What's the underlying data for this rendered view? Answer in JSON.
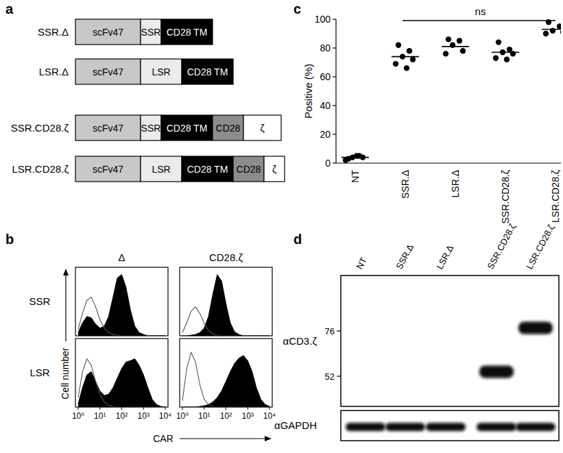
{
  "panel_labels": [
    "a",
    "b",
    "c",
    "d"
  ],
  "diagram": {
    "constructs": [
      {
        "name": "SSR.Δ",
        "domains": [
          {
            "text": "scFv47",
            "color": "#c8c8c8"
          },
          {
            "text": "SSR",
            "color": "#ebebeb"
          },
          {
            "text": "CD28 TM",
            "color": "#000000"
          }
        ]
      },
      {
        "name": "LSR.Δ",
        "domains": [
          {
            "text": "scFv47",
            "color": "#c8c8c8"
          },
          {
            "text": "LSR",
            "color": "#ebebeb"
          },
          {
            "text": "CD28 TM",
            "color": "#000000"
          }
        ]
      },
      {
        "name": "SSR.CD28.ζ",
        "domains": [
          {
            "text": "scFv47",
            "color": "#c8c8c8"
          },
          {
            "text": "SSR",
            "color": "#ebebeb"
          },
          {
            "text": "CD28 TM",
            "color": "#000000"
          },
          {
            "text": "CD28",
            "color": "#8c8c8c"
          },
          {
            "text": "ζ",
            "color": "#ffffff"
          }
        ]
      },
      {
        "name": "LSR.CD28.ζ",
        "domains": [
          {
            "text": "scFv47",
            "color": "#c8c8c8"
          },
          {
            "text": "LSR",
            "color": "#ebebeb"
          },
          {
            "text": "CD28 TM",
            "color": "#000000"
          },
          {
            "text": "CD28",
            "color": "#8c8c8c"
          },
          {
            "text": "ζ",
            "color": "#ffffff"
          }
        ]
      }
    ]
  },
  "histogram_grid": {
    "columns": [
      "Δ",
      "CD28.ζ"
    ],
    "rows": [
      "SSR",
      "LSR"
    ],
    "x_label": "CAR",
    "y_label": "Cell number"
  },
  "chart_data": [
    {
      "type": "dot",
      "y_label": "Positive (%)",
      "categories": [
        "NT",
        "SSR.Δ",
        "LSR.Δ",
        "SSR.CD28.ζ",
        "LSR.CD28.ζ"
      ],
      "points": [
        [
          3,
          5,
          4,
          4,
          2,
          5
        ],
        [
          82,
          78,
          74,
          72,
          69,
          66
        ],
        [
          86,
          85,
          82,
          78,
          76
        ],
        [
          84,
          79,
          77,
          76,
          73,
          72
        ],
        [
          98,
          95,
          92,
          91,
          90
        ]
      ],
      "means": [
        4,
        74,
        81,
        77,
        93
      ],
      "ylim": [
        0,
        100
      ],
      "yticks": [
        0,
        20,
        40,
        60,
        80,
        100
      ],
      "color": "#000000",
      "annotation": {
        "text": "ns",
        "from": "SSR.Δ",
        "to": "LSR.CD28.ζ"
      }
    },
    {
      "type": "area",
      "log": "x",
      "xlim": [
        1,
        10000
      ],
      "ylim": [
        0,
        100
      ],
      "tick_labels": false,
      "x": [
        1,
        1.58,
        2.51,
        3.98,
        6.31,
        10,
        15.8,
        25.1,
        39.8,
        63.1,
        100,
        158,
        251,
        398,
        631,
        1000,
        1585,
        2512,
        3981,
        6310,
        10000
      ],
      "series": [
        {
          "type": "line",
          "color": "#555555",
          "values": [
            10,
            35,
            55,
            60,
            45,
            25,
            12,
            5,
            2,
            1,
            0,
            0,
            0,
            0,
            0,
            0,
            0,
            0,
            0,
            0,
            0
          ]
        },
        {
          "type": "area",
          "color": "#000000",
          "values": [
            5,
            20,
            30,
            28,
            18,
            12,
            15,
            30,
            60,
            90,
            95,
            75,
            40,
            15,
            5,
            2,
            0,
            0,
            0,
            0,
            0
          ]
        }
      ]
    },
    {
      "type": "area",
      "log": "x",
      "xlim": [
        1,
        10000
      ],
      "ylim": [
        0,
        100
      ],
      "tick_labels": false,
      "x": [
        1,
        1.58,
        2.51,
        3.98,
        6.31,
        10,
        15.8,
        25.1,
        39.8,
        63.1,
        100,
        158,
        251,
        398,
        631,
        1000,
        1585,
        2512,
        3981,
        6310,
        10000
      ],
      "series": [
        {
          "type": "line",
          "color": "#555555",
          "values": [
            5,
            20,
            38,
            45,
            35,
            20,
            8,
            3,
            1,
            0,
            0,
            0,
            0,
            0,
            0,
            0,
            0,
            0,
            0,
            0,
            0
          ]
        },
        {
          "type": "area",
          "color": "#000000",
          "values": [
            0,
            0,
            1,
            2,
            5,
            12,
            30,
            65,
            95,
            85,
            50,
            20,
            6,
            2,
            0,
            0,
            0,
            0,
            0,
            0,
            0
          ]
        }
      ]
    },
    {
      "type": "area",
      "log": "x",
      "xlim": [
        1,
        10000
      ],
      "ylim": [
        0,
        100
      ],
      "tick_labels": "x",
      "xticks": [
        {
          "value": 1,
          "label": "10⁰"
        },
        {
          "value": 10,
          "label": "10¹"
        },
        {
          "value": 100,
          "label": "10²"
        },
        {
          "value": 1000,
          "label": "10³"
        },
        {
          "value": 10000,
          "label": "10⁴"
        }
      ],
      "x": [
        1,
        1.58,
        2.51,
        3.98,
        6.31,
        10,
        15.8,
        25.1,
        39.8,
        63.1,
        100,
        158,
        251,
        398,
        631,
        1000,
        1585,
        2512,
        3981,
        6310,
        10000
      ],
      "series": [
        {
          "type": "line",
          "color": "#555555",
          "values": [
            15,
            55,
            75,
            65,
            40,
            20,
            8,
            3,
            1,
            0,
            0,
            0,
            0,
            0,
            0,
            0,
            0,
            0,
            0,
            0,
            0
          ]
        },
        {
          "type": "area",
          "color": "#000000",
          "values": [
            5,
            30,
            50,
            55,
            40,
            25,
            18,
            20,
            30,
            45,
            60,
            70,
            72,
            75,
            65,
            50,
            30,
            12,
            4,
            1,
            0
          ]
        }
      ]
    },
    {
      "type": "area",
      "log": "x",
      "xlim": [
        1,
        10000
      ],
      "ylim": [
        0,
        100
      ],
      "tick_labels": "x",
      "xticks": [
        {
          "value": 1,
          "label": "10⁰"
        },
        {
          "value": 10,
          "label": "10¹"
        },
        {
          "value": 100,
          "label": "10²"
        },
        {
          "value": 1000,
          "label": "10³"
        },
        {
          "value": 10000,
          "label": "10⁴"
        }
      ],
      "x": [
        1,
        1.58,
        2.51,
        3.98,
        6.31,
        10,
        15.8,
        25.1,
        39.8,
        63.1,
        100,
        158,
        251,
        398,
        631,
        1000,
        1585,
        2512,
        3981,
        6310,
        10000
      ],
      "series": [
        {
          "type": "line",
          "color": "#555555",
          "values": [
            10,
            60,
            85,
            70,
            35,
            12,
            4,
            1,
            0,
            0,
            0,
            0,
            0,
            0,
            0,
            0,
            0,
            0,
            0,
            0,
            0
          ]
        },
        {
          "type": "area",
          "color": "#000000",
          "values": [
            0,
            0,
            0,
            0,
            1,
            2,
            4,
            8,
            15,
            25,
            40,
            55,
            68,
            76,
            80,
            72,
            55,
            30,
            12,
            4,
            1
          ]
        }
      ]
    }
  ],
  "blot": {
    "antibody": "αCD3.ζ",
    "loading_control": "αGAPDH",
    "lanes": [
      "NT",
      "SSR.Δ",
      "LSR.Δ",
      "SSR.CD28.ζ",
      "LSR.CD28.ζ"
    ],
    "markers": [
      76,
      52
    ],
    "bands": [
      {
        "lane": "SSR.CD28.ζ",
        "kDa": 54
      },
      {
        "lane": "LSR.CD28.ζ",
        "kDa": 78
      }
    ]
  }
}
